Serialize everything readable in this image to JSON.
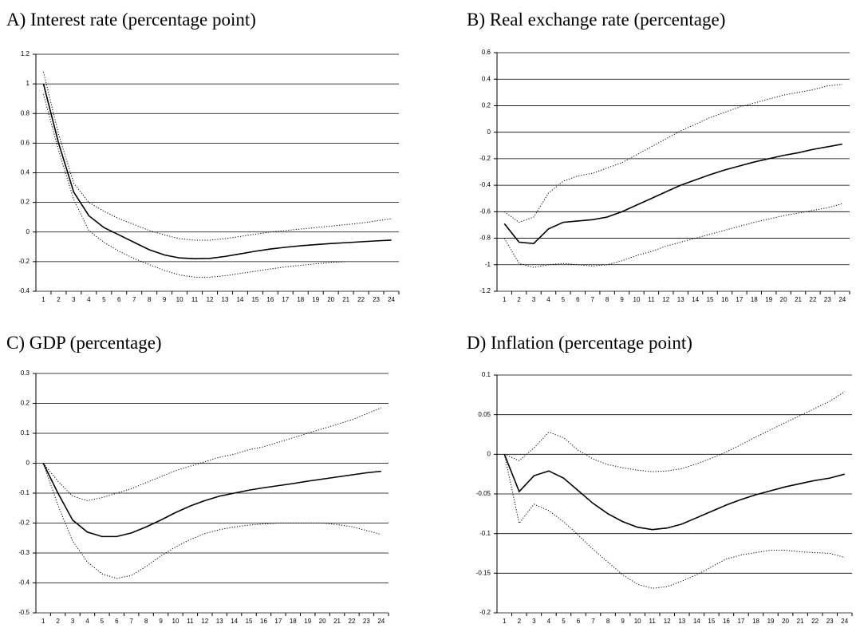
{
  "chart_data": [
    {
      "type": "line",
      "title": "A) Interest rate (percentage point)",
      "categories": [
        1,
        2,
        3,
        4,
        5,
        6,
        7,
        8,
        9,
        10,
        11,
        12,
        13,
        14,
        15,
        16,
        17,
        18,
        19,
        20,
        21,
        22,
        23,
        24
      ],
      "ylim": [
        -0.4,
        1.2
      ],
      "yticks": [
        -0.4,
        -0.2,
        0,
        0.2,
        0.4,
        0.6,
        0.8,
        1,
        1.2
      ],
      "grid": true,
      "series": [
        {
          "color": "#000000",
          "dashed": false,
          "values": [
            1,
            0.6,
            0.27,
            0.11,
            0.03,
            -0.02,
            -0.07,
            -0.12,
            -0.155,
            -0.175,
            -0.18,
            -0.178,
            -0.165,
            -0.148,
            -0.13,
            -0.115,
            -0.103,
            -0.093,
            -0.085,
            -0.078,
            -0.072,
            -0.066,
            -0.06,
            -0.055
          ]
        },
        {
          "color": "#000000",
          "dashed": true,
          "values": [
            1.08,
            0.66,
            0.33,
            0.2,
            0.14,
            0.09,
            0.05,
            0.01,
            -0.02,
            -0.045,
            -0.055,
            -0.055,
            -0.045,
            -0.03,
            -0.015,
            0,
            0.01,
            0.02,
            0.03,
            0.04,
            0.05,
            0.06,
            0.075,
            0.09
          ]
        },
        {
          "color": "#000000",
          "dashed": true,
          "values": [
            0.93,
            0.55,
            0.22,
            0.01,
            -0.07,
            -0.13,
            -0.18,
            -0.22,
            -0.26,
            -0.29,
            -0.305,
            -0.305,
            -0.295,
            -0.28,
            -0.265,
            -0.25,
            -0.235,
            -0.225,
            -0.215,
            -0.205,
            -0.2,
            null,
            null,
            null
          ]
        }
      ]
    },
    {
      "type": "line",
      "title": "B) Real exchange rate (percentage)",
      "categories": [
        1,
        2,
        3,
        4,
        5,
        6,
        7,
        8,
        9,
        10,
        11,
        12,
        13,
        14,
        15,
        16,
        17,
        18,
        19,
        20,
        21,
        22,
        23,
        24
      ],
      "ylim": [
        -1.2,
        0.6
      ],
      "yticks": [
        -1.2,
        -1,
        -0.8,
        -0.6,
        -0.4,
        -0.2,
        0,
        0.2,
        0.4,
        0.6
      ],
      "grid": true,
      "series": [
        {
          "color": "#000000",
          "dashed": false,
          "values": [
            -0.69,
            -0.83,
            -0.84,
            -0.73,
            -0.68,
            -0.67,
            -0.66,
            -0.64,
            -0.6,
            -0.55,
            -0.5,
            -0.45,
            -0.4,
            -0.36,
            -0.32,
            -0.285,
            -0.255,
            -0.225,
            -0.2,
            -0.175,
            -0.155,
            -0.13,
            -0.11,
            -0.09
          ]
        },
        {
          "color": "#000000",
          "dashed": true,
          "values": [
            -0.6,
            -0.68,
            -0.64,
            -0.46,
            -0.37,
            -0.33,
            -0.31,
            -0.27,
            -0.23,
            -0.17,
            -0.11,
            -0.05,
            0.01,
            0.06,
            0.11,
            0.15,
            0.19,
            0.22,
            0.25,
            0.28,
            0.3,
            0.32,
            0.35,
            0.36
          ]
        },
        {
          "color": "#000000",
          "dashed": true,
          "values": [
            -0.8,
            -0.99,
            -1.02,
            -1,
            -0.99,
            -1,
            -1.01,
            -1,
            -0.97,
            -0.93,
            -0.9,
            -0.86,
            -0.83,
            -0.8,
            -0.77,
            -0.74,
            -0.71,
            -0.68,
            -0.655,
            -0.63,
            -0.61,
            -0.59,
            -0.57,
            -0.54
          ]
        }
      ]
    },
    {
      "type": "line",
      "title": "C) GDP (percentage)",
      "categories": [
        1,
        2,
        3,
        4,
        5,
        6,
        7,
        8,
        9,
        10,
        11,
        12,
        13,
        14,
        15,
        16,
        17,
        18,
        19,
        20,
        21,
        22,
        23,
        24
      ],
      "ylim": [
        -0.5,
        0.3
      ],
      "yticks": [
        -0.5,
        -0.4,
        -0.3,
        -0.2,
        -0.1,
        0,
        0.1,
        0.2,
        0.3
      ],
      "grid": true,
      "series": [
        {
          "color": "#000000",
          "dashed": false,
          "values": [
            0,
            -0.1,
            -0.19,
            -0.23,
            -0.245,
            -0.245,
            -0.233,
            -0.213,
            -0.19,
            -0.165,
            -0.143,
            -0.125,
            -0.11,
            -0.1,
            -0.09,
            -0.082,
            -0.075,
            -0.068,
            -0.06,
            -0.053,
            -0.046,
            -0.039,
            -0.032,
            -0.027
          ]
        },
        {
          "color": "#000000",
          "dashed": true,
          "values": [
            0,
            -0.06,
            -0.11,
            -0.125,
            -0.115,
            -0.1,
            -0.085,
            -0.065,
            -0.045,
            -0.025,
            -0.01,
            0.005,
            0.02,
            0.03,
            0.045,
            0.055,
            0.07,
            0.085,
            0.1,
            0.115,
            0.13,
            0.145,
            0.165,
            0.185
          ]
        },
        {
          "color": "#000000",
          "dashed": true,
          "values": [
            0,
            -0.14,
            -0.26,
            -0.33,
            -0.37,
            -0.385,
            -0.375,
            -0.345,
            -0.31,
            -0.28,
            -0.255,
            -0.235,
            -0.222,
            -0.213,
            -0.207,
            -0.203,
            -0.2,
            -0.2,
            -0.2,
            -0.2,
            -0.205,
            -0.212,
            -0.225,
            -0.238
          ]
        }
      ]
    },
    {
      "type": "line",
      "title": "D) Inflation (percentage point)",
      "categories": [
        1,
        2,
        3,
        4,
        5,
        6,
        7,
        8,
        9,
        10,
        11,
        12,
        13,
        14,
        15,
        16,
        17,
        18,
        19,
        20,
        21,
        22,
        23,
        24
      ],
      "ylim": [
        -0.2,
        0.1
      ],
      "yticks": [
        -0.2,
        -0.15,
        -0.1,
        -0.05,
        0,
        0.05,
        0.1
      ],
      "grid": true,
      "series": [
        {
          "color": "#000000",
          "dashed": false,
          "values": [
            0,
            -0.047,
            -0.027,
            -0.021,
            -0.03,
            -0.046,
            -0.062,
            -0.075,
            -0.085,
            -0.092,
            -0.095,
            -0.093,
            -0.088,
            -0.08,
            -0.072,
            -0.064,
            -0.057,
            -0.051,
            -0.046,
            -0.041,
            -0.037,
            -0.033,
            -0.03,
            -0.025
          ]
        },
        {
          "color": "#000000",
          "dashed": true,
          "values": [
            0,
            -0.008,
            0.008,
            0.028,
            0.021,
            0.005,
            -0.006,
            -0.013,
            -0.017,
            -0.02,
            -0.022,
            -0.021,
            -0.018,
            -0.012,
            -0.005,
            0.003,
            0.012,
            0.022,
            0.031,
            0.04,
            0.049,
            0.058,
            0.067,
            0.079
          ]
        },
        {
          "color": "#000000",
          "dashed": true,
          "values": [
            0,
            -0.087,
            -0.063,
            -0.071,
            -0.085,
            -0.102,
            -0.12,
            -0.136,
            -0.152,
            -0.164,
            -0.169,
            -0.167,
            -0.16,
            -0.152,
            -0.142,
            -0.132,
            -0.127,
            -0.124,
            -0.121,
            -0.121,
            -0.123,
            -0.124,
            -0.125,
            -0.13
          ]
        }
      ]
    }
  ]
}
